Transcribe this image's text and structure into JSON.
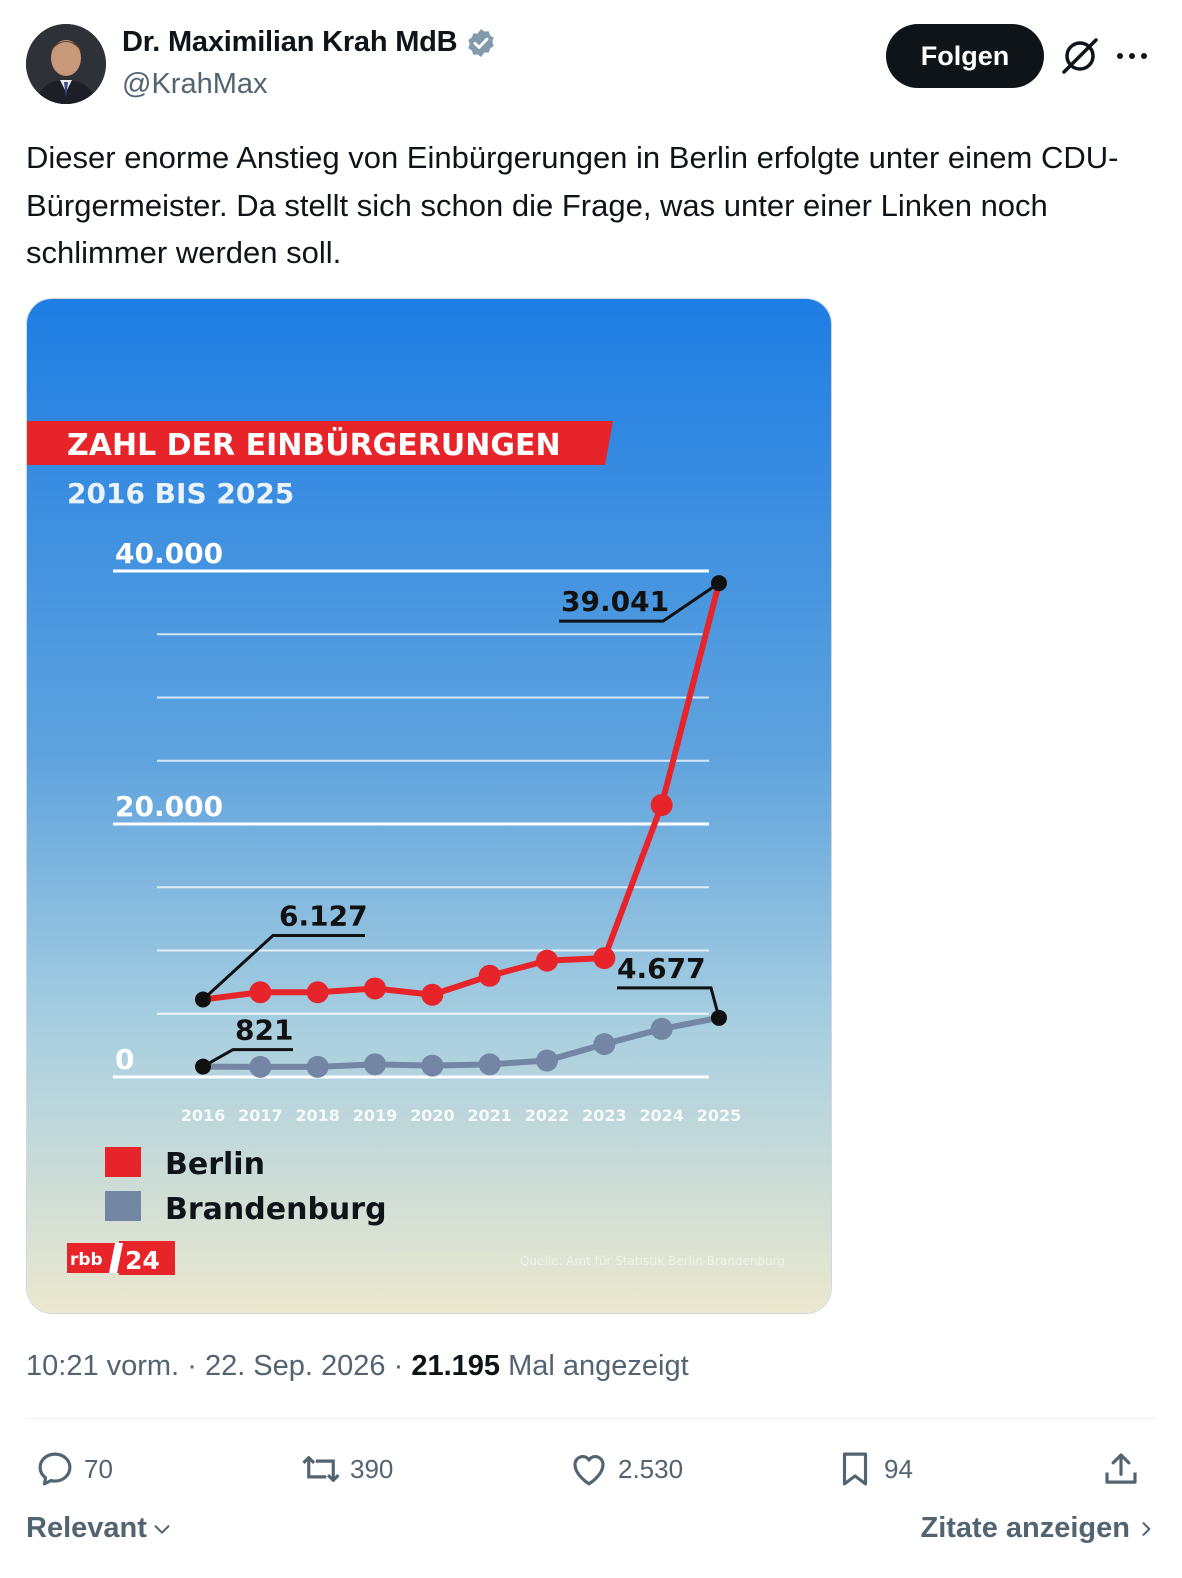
{
  "author": {
    "display_name": "Dr. Maximilian Krah MdB",
    "handle": "@KrahMax",
    "verified_color": "#829aab"
  },
  "header": {
    "follow_label": "Folgen",
    "grok_icon": "grok-icon",
    "more_icon": "more-icon"
  },
  "tweet": {
    "text": "Dieser enorme Anstieg von Einbürgerungen in Berlin erfolgte unter einem CDU-Bürgermeister. Da stellt sich schon die Frage, was unter einer Linken noch schlimmer werden soll."
  },
  "meta": {
    "time": "10:21 vorm.",
    "sep1": "·",
    "date": "22. Sep. 2026",
    "sep2": "·",
    "views_count": "21.195",
    "views_label": "Mal angezeigt"
  },
  "actions": {
    "replies": "70",
    "reposts": "390",
    "likes": "2.530",
    "bookmarks": "94"
  },
  "footer": {
    "sort_label": "Relevant",
    "quotes_label": "Zitate anzeigen"
  },
  "chart_data": {
    "type": "line",
    "title": "ZAHL DER EINBÜRGERUNGEN",
    "subtitle": "2016 BIS 2025",
    "x": [
      "2016",
      "2017",
      "2018",
      "2019",
      "2020",
      "2021",
      "2022",
      "2023",
      "2024",
      "2025"
    ],
    "ylim": [
      0,
      40000
    ],
    "y_tick_labels": [
      "40.000",
      "20.000",
      "0"
    ],
    "y_ticks": [
      40000,
      20000,
      0
    ],
    "gridlines": [
      5000,
      10000,
      15000,
      25000,
      30000,
      35000
    ],
    "series": [
      {
        "name": "Berlin",
        "color": "#e8242b",
        "values": [
          6127,
          6700,
          6700,
          7000,
          6500,
          8000,
          9200,
          9400,
          21500,
          39041
        ]
      },
      {
        "name": "Brandenburg",
        "color": "#7386a3",
        "values": [
          821,
          800,
          800,
          1000,
          900,
          1000,
          1300,
          2600,
          3800,
          4677
        ]
      }
    ],
    "annotations": [
      {
        "text": "39.041",
        "series": "Berlin",
        "x": "2025"
      },
      {
        "text": "6.127",
        "series": "Berlin",
        "x": "2016"
      },
      {
        "text": "4.677",
        "series": "Brandenburg",
        "x": "2025"
      },
      {
        "text": "821",
        "series": "Brandenburg",
        "x": "2016"
      }
    ],
    "legend": [
      {
        "label": "Berlin",
        "color": "#e8242b"
      },
      {
        "label": "Brandenburg",
        "color": "#7386a3"
      }
    ],
    "legend_position": "bottom-left",
    "brand_logo_text": "rbb 24",
    "source_text": "Quelle: Amt für Statistik Berlin-Brandenburg"
  }
}
